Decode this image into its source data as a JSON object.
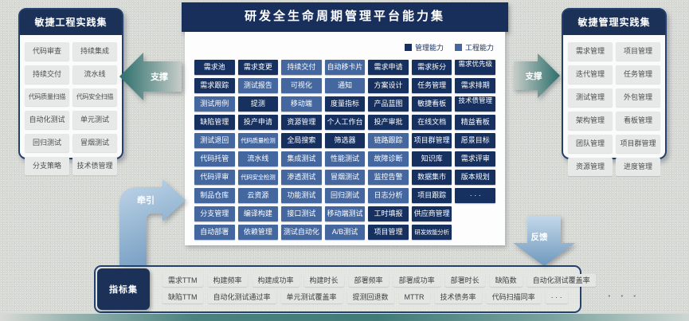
{
  "colors": {
    "management": "#16305f",
    "engineering": "#44679f",
    "navy_header": "#182f5c",
    "teal_arrow": "#2c6f6c",
    "blue_arrow": "#7ba1c4"
  },
  "left_panel": {
    "title": "敏捷工程实践集",
    "items": [
      "代码审查",
      "持续集成",
      "持续交付",
      "流水线",
      "代码质量扫描",
      "代码安全扫描",
      "自动化测试",
      "单元测试",
      "回归测试",
      "冒烟测试",
      "分支策略",
      "技术债管理"
    ]
  },
  "right_panel": {
    "title": "敏捷管理实践集",
    "items": [
      "需求管理",
      "项目管理",
      "迭代管理",
      "任务管理",
      "测试管理",
      "外包管理",
      "架构管理",
      "看板管理",
      "团队管理",
      "项目群管理",
      "资源管理",
      "进度管理"
    ]
  },
  "center": {
    "title": "研发全生命周期管理平台能力集",
    "legend": [
      {
        "label": "管理能力"
      },
      {
        "label": "工程能力"
      }
    ],
    "rows": [
      [
        {
          "t": "需求池",
          "k": "m"
        },
        {
          "t": "需求变更",
          "k": "m"
        },
        {
          "t": "持续交付",
          "k": "e"
        },
        {
          "t": "自动移卡片",
          "k": "e"
        },
        {
          "t": "需求申请",
          "k": "m"
        },
        {
          "t": "需求拆分",
          "k": "m"
        },
        {
          "t": "需求优先级",
          "k": "m",
          "w": 1
        }
      ],
      [
        {
          "t": "需求跟踪",
          "k": "m"
        },
        {
          "t": "测试报告",
          "k": "e"
        },
        {
          "t": "可视化",
          "k": "e"
        },
        {
          "t": "通知",
          "k": "e"
        },
        {
          "t": "方案设计",
          "k": "m"
        },
        {
          "t": "任务管理",
          "k": "m"
        },
        {
          "t": "需求排期",
          "k": "m"
        }
      ],
      [
        {
          "t": "测试用例",
          "k": "e"
        },
        {
          "t": "提测",
          "k": "m"
        },
        {
          "t": "移动端",
          "k": "e"
        },
        {
          "t": "度量指标",
          "k": "m"
        },
        {
          "t": "产品蓝图",
          "k": "m"
        },
        {
          "t": "敏捷看板",
          "k": "m"
        },
        {
          "t": "技术债管理",
          "k": "m",
          "w": 1
        }
      ],
      [
        {
          "t": "缺陷管理",
          "k": "m"
        },
        {
          "t": "投产申请",
          "k": "m"
        },
        {
          "t": "资源管理",
          "k": "m"
        },
        {
          "t": "个人工作台",
          "k": "m"
        },
        {
          "t": "投产审批",
          "k": "m"
        },
        {
          "t": "在线文档",
          "k": "m"
        },
        {
          "t": "精益看板",
          "k": "m"
        }
      ],
      [
        {
          "t": "测试退回",
          "k": "e"
        },
        {
          "t": "代码质量检测",
          "k": "e"
        },
        {
          "t": "全局搜索",
          "k": "m"
        },
        {
          "t": "筛选器",
          "k": "m"
        },
        {
          "t": "链路跟踪",
          "k": "e"
        },
        {
          "t": "项目群管理",
          "k": "m"
        },
        {
          "t": "愿景目标",
          "k": "m"
        }
      ],
      [
        {
          "t": "代码托管",
          "k": "e"
        },
        {
          "t": "流水线",
          "k": "e"
        },
        {
          "t": "集成测试",
          "k": "e"
        },
        {
          "t": "性能测试",
          "k": "e"
        },
        {
          "t": "故障诊断",
          "k": "e"
        },
        {
          "t": "知识库",
          "k": "m"
        },
        {
          "t": "需求评审",
          "k": "m"
        }
      ],
      [
        {
          "t": "代码评审",
          "k": "e"
        },
        {
          "t": "代码安全检测",
          "k": "e"
        },
        {
          "t": "渗透测试",
          "k": "e"
        },
        {
          "t": "冒烟测试",
          "k": "e"
        },
        {
          "t": "监控告警",
          "k": "e"
        },
        {
          "t": "数据集市",
          "k": "m"
        },
        {
          "t": "版本规划",
          "k": "m"
        }
      ],
      [
        {
          "t": "制品仓库",
          "k": "e"
        },
        {
          "t": "云资源",
          "k": "e"
        },
        {
          "t": "功能测试",
          "k": "e"
        },
        {
          "t": "回归测试",
          "k": "e"
        },
        {
          "t": "日志分析",
          "k": "e"
        },
        {
          "t": "项目跟踪",
          "k": "m"
        },
        {
          "t": "· · ·",
          "k": "m"
        }
      ],
      [
        {
          "t": "分支管理",
          "k": "e"
        },
        {
          "t": "编译构建",
          "k": "e"
        },
        {
          "t": "接口测试",
          "k": "e"
        },
        {
          "t": "移动端测试",
          "k": "e"
        },
        {
          "t": "工时填报",
          "k": "m"
        },
        {
          "t": "供应商管理",
          "k": "m"
        }
      ],
      [
        {
          "t": "自动部署",
          "k": "e"
        },
        {
          "t": "依赖管理",
          "k": "e"
        },
        {
          "t": "测试自动化",
          "k": "e"
        },
        {
          "t": "A/B测试",
          "k": "e"
        },
        {
          "t": "项目管理",
          "k": "m"
        },
        {
          "t": "研发效能分析",
          "k": "m"
        }
      ]
    ]
  },
  "arrows": {
    "left_support": "支撑",
    "right_support": "支撑",
    "pull": "牵引",
    "feedback": "反馈"
  },
  "metrics": {
    "title": "指标集",
    "row1": [
      "需求TTM",
      "构建频率",
      "构建成功率",
      "构建时长",
      "部署频率",
      "部署成功率",
      "部署时长",
      "缺陷数",
      "自动化测试覆盖率"
    ],
    "row2": [
      "缺陷TTM",
      "自动化测试通过率",
      "单元测试覆盖率",
      "提测回退数",
      "MTTR",
      "技术债务率",
      "代码扫描同率",
      "· · ·"
    ],
    "more": "· · ·"
  }
}
